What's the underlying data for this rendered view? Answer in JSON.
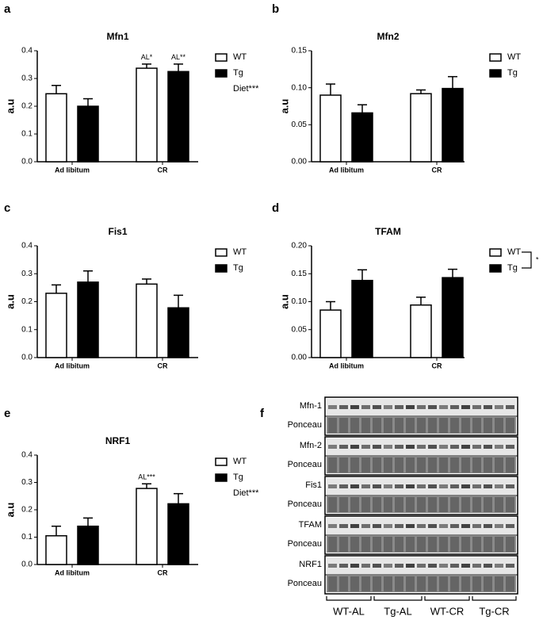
{
  "chart_data": [
    {
      "type": "bar",
      "panel_label": "a",
      "title": "Mfn1",
      "y_label": "a.u",
      "categories": [
        "Ad libitum",
        "CR"
      ],
      "series": [
        {
          "name": "WT",
          "color": "#ffffff",
          "values": [
            0.245,
            0.337
          ],
          "errors": [
            0.03,
            0.015
          ],
          "labels": [
            null,
            "AL*"
          ]
        },
        {
          "name": "Tg",
          "color": "#000000",
          "values": [
            0.2,
            0.325
          ],
          "errors": [
            0.027,
            0.027
          ],
          "labels": [
            null,
            "AL**"
          ]
        }
      ],
      "note": "Diet***",
      "ylim": [
        0,
        0.4
      ],
      "yticks": [
        {
          "value": 0,
          "label": "0.0"
        },
        0.1,
        0.2,
        0.3,
        0.4
      ]
    },
    {
      "type": "bar",
      "panel_label": "b",
      "title": "Mfn2",
      "y_label": "a.u",
      "categories": [
        "Ad libitum",
        "CR"
      ],
      "series": [
        {
          "name": "WT",
          "color": "#ffffff",
          "values": [
            0.09,
            0.092
          ],
          "errors": [
            0.015,
            0.005
          ]
        },
        {
          "name": "Tg",
          "color": "#000000",
          "values": [
            0.066,
            0.099
          ],
          "errors": [
            0.011,
            0.016
          ]
        }
      ],
      "ylim": [
        0,
        0.15
      ],
      "yticks": [
        {
          "value": 0,
          "label": "0.00"
        },
        0.05,
        {
          "value": 0.1,
          "label": "0.10"
        },
        0.15
      ]
    },
    {
      "type": "bar",
      "panel_label": "c",
      "title": "Fis1",
      "y_label": "a.u",
      "categories": [
        "Ad libitum",
        "CR"
      ],
      "series": [
        {
          "name": "WT",
          "color": "#ffffff",
          "values": [
            0.23,
            0.263
          ],
          "errors": [
            0.03,
            0.018
          ]
        },
        {
          "name": "Tg",
          "color": "#000000",
          "values": [
            0.27,
            0.178
          ],
          "errors": [
            0.04,
            0.045
          ]
        }
      ],
      "ylim": [
        0,
        0.4
      ],
      "yticks": [
        {
          "value": 0,
          "label": "0.0"
        },
        0.1,
        0.2,
        0.3,
        0.4
      ]
    },
    {
      "type": "bar",
      "panel_label": "d",
      "title": "TFAM",
      "y_label": "a.u",
      "categories": [
        "Ad libitum",
        "CR"
      ],
      "series": [
        {
          "name": "WT",
          "color": "#ffffff",
          "values": [
            0.085,
            0.094
          ],
          "errors": [
            0.015,
            0.014
          ]
        },
        {
          "name": "Tg",
          "color": "#000000",
          "values": [
            0.138,
            0.143
          ],
          "errors": [
            0.019,
            0.015
          ]
        }
      ],
      "legend_significance": "*",
      "ylim": [
        0,
        0.2
      ],
      "yticks": [
        {
          "value": 0,
          "label": "0.00"
        },
        0.05,
        {
          "value": 0.1,
          "label": "0.10"
        },
        0.15,
        {
          "value": 0.2,
          "label": "0.20"
        }
      ]
    },
    {
      "type": "bar",
      "panel_label": "e",
      "title": "NRF1",
      "y_label": "a.u",
      "categories": [
        "Ad libitum",
        "CR"
      ],
      "series": [
        {
          "name": "WT",
          "color": "#ffffff",
          "values": [
            0.105,
            0.278
          ],
          "errors": [
            0.035,
            0.017
          ],
          "labels": [
            null,
            "AL***"
          ]
        },
        {
          "name": "Tg",
          "color": "#000000",
          "values": [
            0.14,
            0.222
          ],
          "errors": [
            0.03,
            0.037
          ]
        }
      ],
      "note": "Diet***",
      "ylim": [
        0,
        0.4
      ],
      "yticks": [
        {
          "value": 0,
          "label": "0.0"
        },
        0.1,
        0.2,
        0.3,
        0.4
      ]
    }
  ],
  "blot": {
    "panel_label": "f",
    "rows": [
      {
        "protein": "Mfn-1",
        "loading": "Ponceau"
      },
      {
        "protein": "Mfn-2",
        "loading": "Ponceau"
      },
      {
        "protein": "Fis1",
        "loading": "Ponceau"
      },
      {
        "protein": "TFAM",
        "loading": "Ponceau"
      },
      {
        "protein": "NRF1",
        "loading": "Ponceau"
      }
    ],
    "groups": [
      "WT-AL",
      "Tg-AL",
      "WT-CR",
      "Tg-CR"
    ]
  }
}
